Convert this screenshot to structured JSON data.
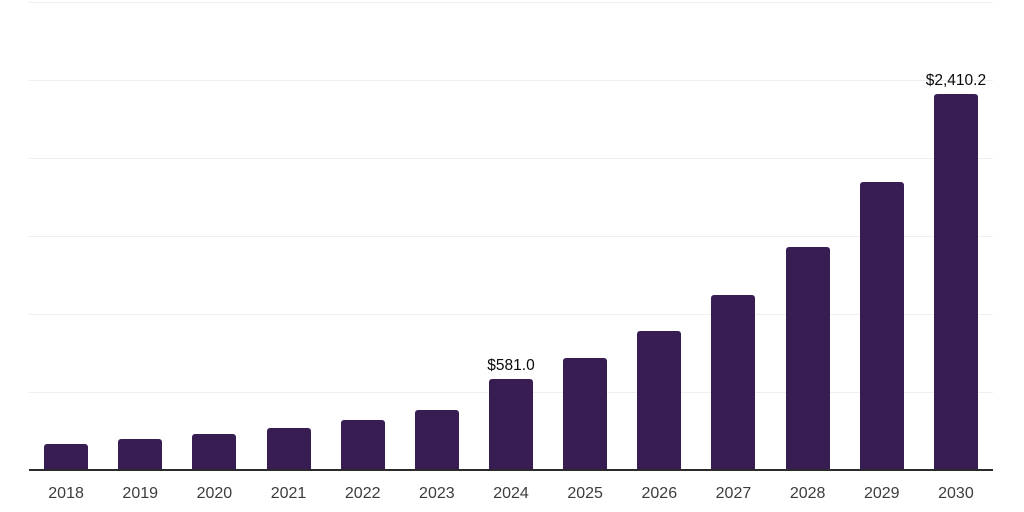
{
  "chart_data": {
    "type": "bar",
    "title": "",
    "xlabel": "",
    "ylabel": "",
    "categories": [
      "2018",
      "2019",
      "2020",
      "2021",
      "2022",
      "2023",
      "2024",
      "2025",
      "2026",
      "2027",
      "2028",
      "2029",
      "2030"
    ],
    "values": [
      167,
      199,
      231,
      269,
      321,
      385,
      581.0,
      718,
      891,
      1122,
      1430,
      1846,
      2410.2
    ],
    "bar_labels": [
      "",
      "",
      "",
      "",
      "",
      "",
      "$581.0",
      "",
      "",
      "",
      "",
      "",
      "$2,410.2"
    ],
    "ylim": [
      0,
      3000
    ],
    "gridline_step": 500,
    "grid": "horizontal",
    "legend_position": "none",
    "colors": {
      "bar": "#371d52",
      "gridline": "#efefef",
      "axis": "#2b2b2b",
      "tick_label": "#3c3c3c",
      "data_label": "#0a0a0a",
      "background": "#ffffff"
    }
  }
}
